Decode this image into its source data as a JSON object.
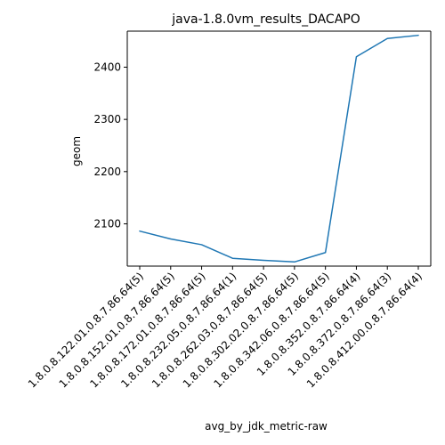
{
  "chart_data": {
    "type": "line",
    "title": "java-1.8.0vm_results_DACAPO",
    "xlabel": "avg_by_jdk_metric-raw",
    "ylabel": "geom",
    "categories": [
      "1.8.0.8.122.01.0.8.7.86.64(5)",
      "1.8.0.8.152.01.0.8.7.86.64(5)",
      "1.8.0.8.172.01.0.8.7.86.64(5)",
      "1.8.0.8.232.05.0.8.7.86.64(1)",
      "1.8.0.8.262.03.0.8.7.86.64(5)",
      "1.8.0.8.302.02.0.8.7.86.64(5)",
      "1.8.0.8.342.06.0.8.7.86.64(5)",
      "1.8.0.8.352.0.8.7.86.64(4)",
      "1.8.0.8.372.0.8.7.86.64(3)",
      "1.8.0.8.412.00.0.8.7.86.64(4)"
    ],
    "series": [
      {
        "values": [
          2086,
          2071,
          2060,
          2034,
          2030,
          2027,
          2045,
          2420,
          2455,
          2461
        ],
        "color": "#1f77b4"
      }
    ],
    "yticks": [
      2100,
      2200,
      2300,
      2400
    ],
    "ylim": [
      2019,
      2469
    ],
    "grid": false
  }
}
